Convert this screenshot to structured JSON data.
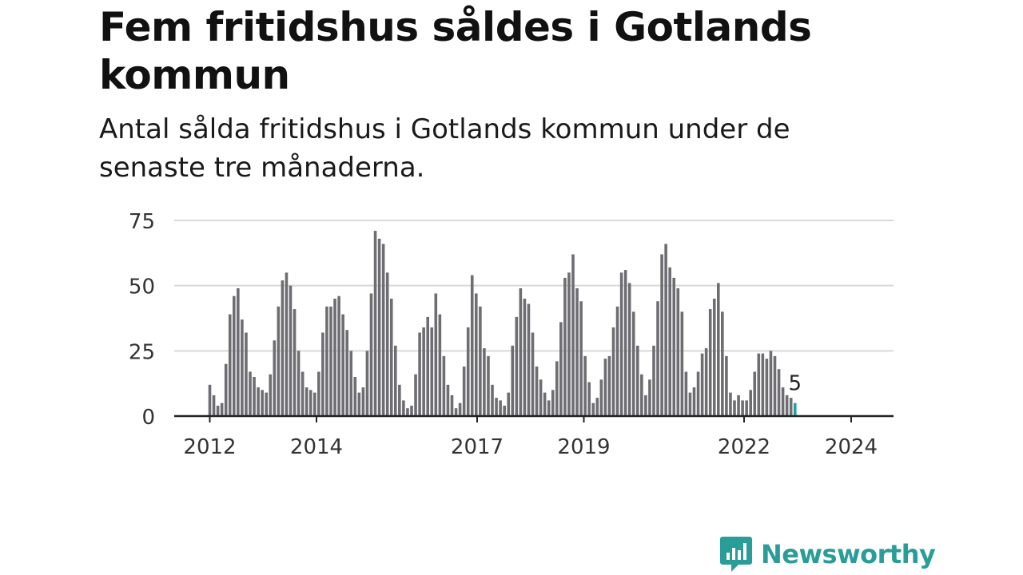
{
  "title": "Fem fritidshus såldes i Gotlands kommun",
  "subtitle": "Antal sålda fritidshus i Gotlands kommun under de senaste tre månaderna.",
  "brand": {
    "name": "Newsworthy"
  },
  "colors": {
    "bar": "#6e6d72",
    "highlight": "#1aa3a0",
    "grid": "#d9d9d9",
    "axis": "#222222",
    "brand": "#2a9d98"
  },
  "chart_data": {
    "type": "bar",
    "yticks": [
      0,
      25,
      50,
      75
    ],
    "ylim": [
      0,
      75
    ],
    "xticks": [
      "2012",
      "2014",
      "2017",
      "2019",
      "2022",
      "2024"
    ],
    "grid": true,
    "highlight_label": "5",
    "values": [
      12,
      8,
      4,
      5,
      20,
      39,
      46,
      49,
      37,
      32,
      17,
      15,
      11,
      10,
      9,
      16,
      29,
      42,
      52,
      55,
      50,
      41,
      25,
      17,
      11,
      10,
      9,
      17,
      32,
      42,
      42,
      45,
      46,
      39,
      33,
      25,
      15,
      9,
      11,
      25,
      47,
      71,
      68,
      66,
      55,
      45,
      27,
      12,
      6,
      3,
      4,
      16,
      32,
      34,
      38,
      34,
      47,
      39,
      23,
      12,
      8,
      3,
      5,
      19,
      34,
      54,
      47,
      42,
      26,
      23,
      12,
      7,
      6,
      4,
      9,
      27,
      38,
      49,
      45,
      43,
      32,
      19,
      14,
      9,
      6,
      10,
      21,
      36,
      53,
      55,
      62,
      49,
      44,
      23,
      13,
      5,
      7,
      14,
      22,
      23,
      34,
      42,
      55,
      56,
      51,
      40,
      27,
      16,
      8,
      14,
      27,
      44,
      62,
      66,
      57,
      53,
      49,
      40,
      17,
      9,
      11,
      17,
      24,
      26,
      41,
      45,
      51,
      40,
      23,
      9,
      6,
      8,
      6,
      6,
      10,
      17,
      24,
      24,
      22,
      25,
      23,
      18,
      11,
      8,
      7,
      5
    ]
  }
}
